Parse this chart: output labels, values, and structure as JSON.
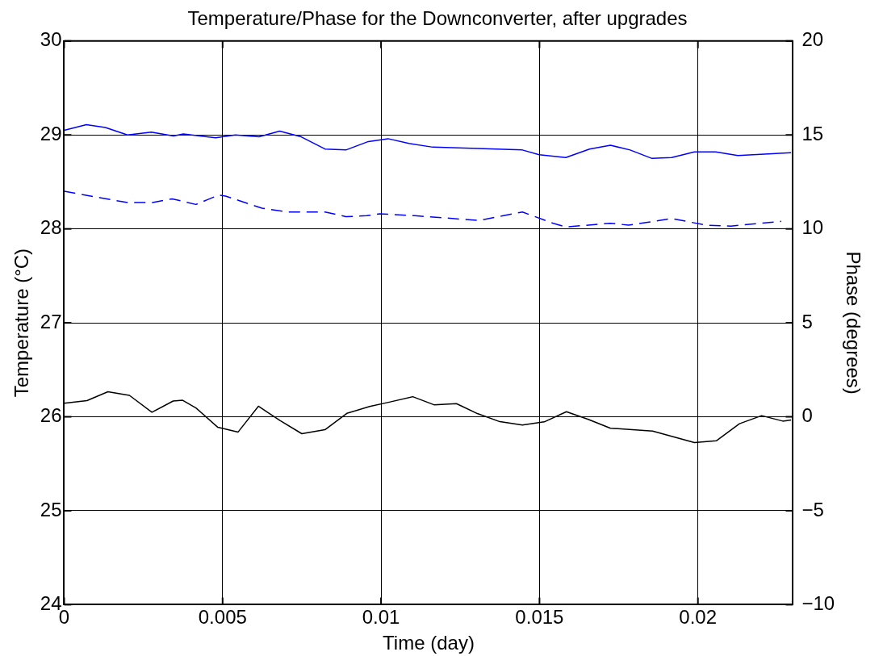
{
  "chart_data": {
    "type": "line",
    "title": "Temperature/Phase for the Downconverter, after upgrades",
    "xlabel": "Time (day)",
    "ylabel": "Temperature (°C)",
    "y2label": "Phase (degrees)",
    "xlim": [
      0,
      0.023
    ],
    "xticks": [
      0,
      0.005,
      0.01,
      0.015,
      0.02
    ],
    "ylim": [
      24,
      30
    ],
    "yticks": [
      24,
      25,
      26,
      27,
      28,
      29,
      30
    ],
    "y2lim": [
      -10,
      20
    ],
    "y2ticks": [
      {
        "value": -10,
        "label": "−10"
      },
      {
        "value": -5,
        "label": "−5"
      },
      0,
      5,
      10,
      15,
      20
    ],
    "grid": true,
    "legend": false,
    "marker": "none",
    "series": [
      {
        "color": "#0000ff",
        "line_style": "solid",
        "x": [
          0,
          0.0007,
          0.0013,
          0.002,
          0.00275,
          0.00345,
          0.00376,
          0.00478,
          0.0054,
          0.00615,
          0.0068,
          0.00748,
          0.00823,
          0.00889,
          0.0096,
          0.01022,
          0.01088,
          0.01163,
          0.01446,
          0.01499,
          0.01583,
          0.01658,
          0.01724,
          0.01786,
          0.01855,
          0.01917,
          0.01989,
          0.02056,
          0.02126,
          0.02294
        ],
        "values": [
          29.05,
          29.11,
          29.08,
          29.0,
          29.03,
          28.99,
          29.01,
          28.97,
          29.0,
          28.98,
          29.04,
          28.98,
          28.85,
          28.84,
          28.93,
          28.96,
          28.91,
          28.87,
          28.84,
          28.79,
          28.76,
          28.85,
          28.89,
          28.84,
          28.75,
          28.76,
          28.82,
          28.82,
          28.78,
          28.81
        ]
      },
      {
        "color": "#0000ff",
        "line_style": "dashed",
        "x": [
          0,
          0.00116,
          0.002,
          0.00279,
          0.00341,
          0.00416,
          0.00487,
          0.00509,
          0.00624,
          0.00708,
          0.00823,
          0.00889,
          0.00955,
          0.00995,
          0.01106,
          0.01309,
          0.01446,
          0.01543,
          0.01583,
          0.01724,
          0.01781,
          0.01918,
          0.02025,
          0.02104,
          0.02263
        ],
        "values": [
          28.4,
          28.33,
          28.28,
          28.28,
          28.32,
          28.26,
          28.36,
          28.35,
          28.22,
          28.18,
          28.18,
          28.13,
          28.14,
          28.16,
          28.14,
          28.09,
          28.18,
          28.06,
          28.02,
          28.06,
          28.04,
          28.11,
          28.04,
          28.03,
          28.08
        ]
      },
      {
        "color": "#000000",
        "line_style": "solid",
        "axis": "y2",
        "x": [
          0,
          0.00072,
          0.00138,
          0.00206,
          0.00277,
          0.00344,
          0.00374,
          0.00416,
          0.00485,
          0.00549,
          0.00613,
          0.00681,
          0.0075,
          0.00823,
          0.00892,
          0.00964,
          0.01026,
          0.011,
          0.01167,
          0.01238,
          0.01304,
          0.01375,
          0.01446,
          0.01515,
          0.01585,
          0.01654,
          0.01724,
          0.01857,
          0.01989,
          0.02058,
          0.02131,
          0.02201,
          0.02268,
          0.02294
        ],
        "values": [
          0.72,
          0.86,
          1.33,
          1.14,
          0.24,
          0.84,
          0.88,
          0.47,
          -0.56,
          -0.81,
          0.56,
          -0.2,
          -0.9,
          -0.69,
          0.18,
          0.55,
          0.78,
          1.07,
          0.64,
          0.7,
          0.17,
          -0.26,
          -0.44,
          -0.27,
          0.27,
          -0.14,
          -0.61,
          -0.76,
          -1.37,
          -1.28,
          -0.37,
          0.06,
          -0.23,
          -0.17
        ]
      }
    ]
  }
}
